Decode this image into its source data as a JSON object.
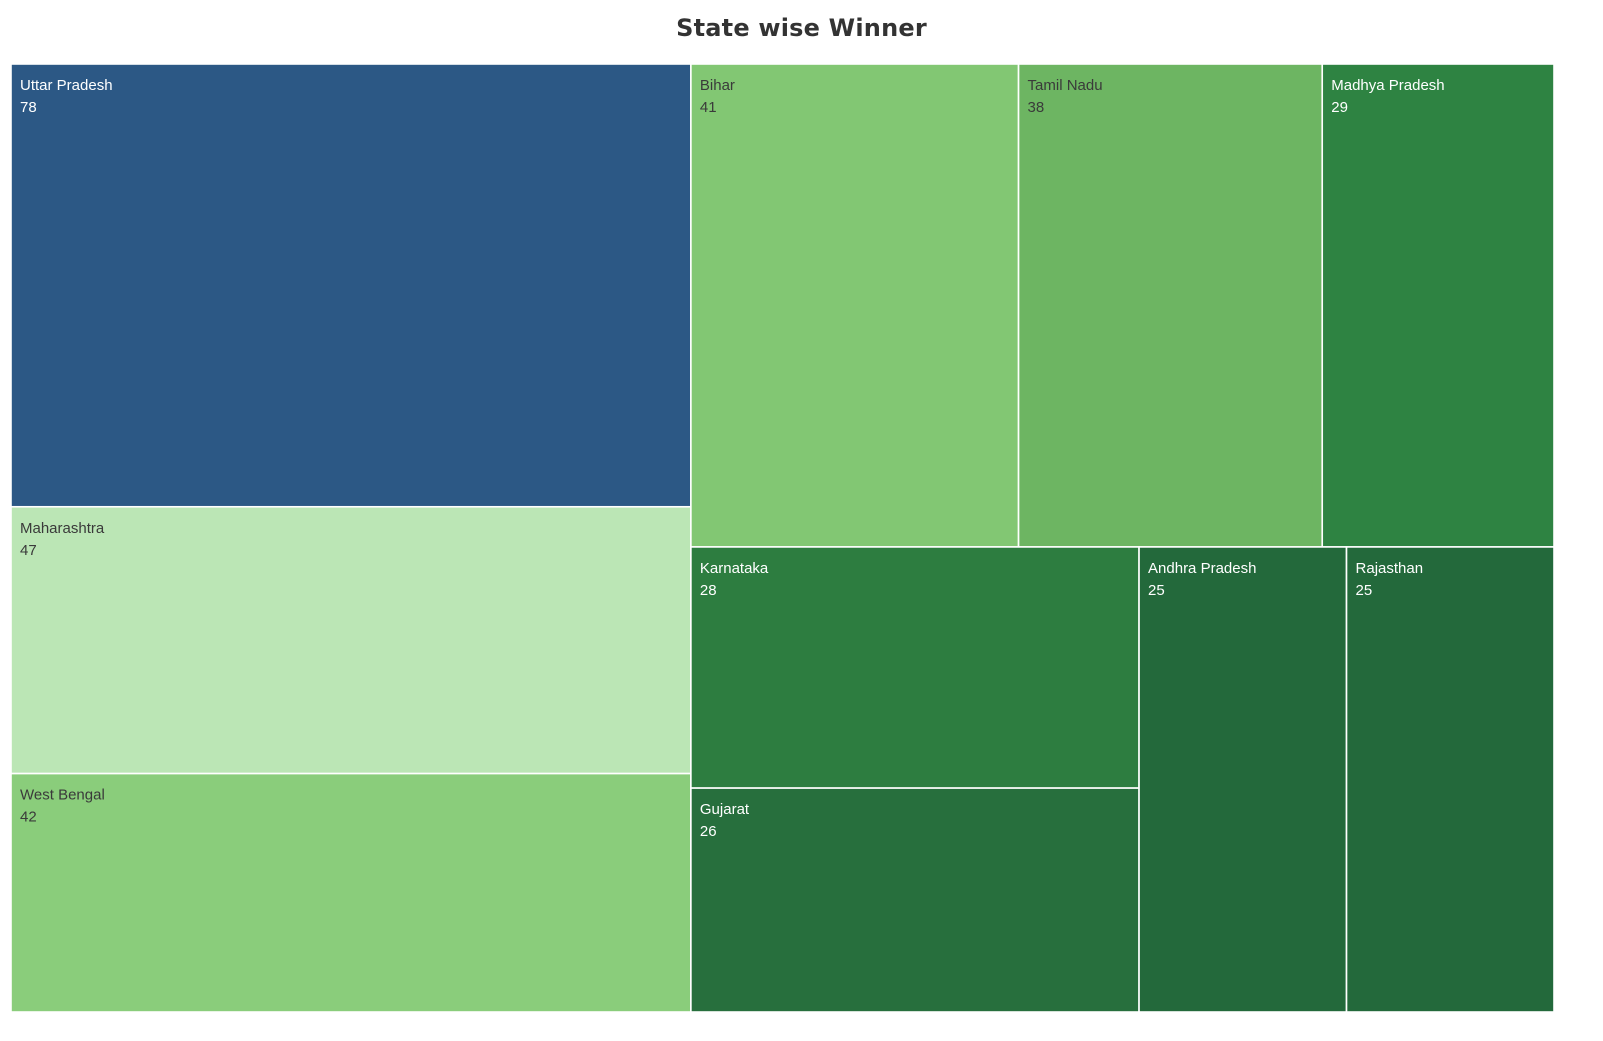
{
  "chart_data": {
    "type": "treemap",
    "title": "State wise Winner",
    "categories": [
      "Uttar Pradesh",
      "Maharashtra",
      "West Bengal",
      "Bihar",
      "Tamil Nadu",
      "Madhya Pradesh",
      "Karnataka",
      "Gujarat",
      "Andhra Pradesh",
      "Rajasthan"
    ],
    "values": [
      78,
      47,
      42,
      41,
      38,
      29,
      28,
      26,
      25,
      25
    ],
    "colors": {
      "Uttar Pradesh": "#2c5885",
      "Maharashtra": "#bbe6b5",
      "West Bengal": "#8acd7b",
      "Bihar": "#82c773",
      "Tamil Nadu": "#6db562",
      "Madhya Pradesh": "#2e8342",
      "Karnataka": "#2d7d40",
      "Gujarat": "#276f3d",
      "Andhra Pradesh": "#23693b",
      "Rajasthan": "#23693b"
    },
    "label_colors": {
      "Uttar Pradesh": "#ffffff",
      "Maharashtra": "#3a3a3a",
      "West Bengal": "#3a3a3a",
      "Bihar": "#3a3a3a",
      "Tamil Nadu": "#3a3a3a",
      "Madhya Pradesh": "#ffffff",
      "Karnataka": "#ffffff",
      "Gujarat": "#ffffff",
      "Andhra Pradesh": "#ffffff",
      "Rajasthan": "#ffffff"
    }
  }
}
